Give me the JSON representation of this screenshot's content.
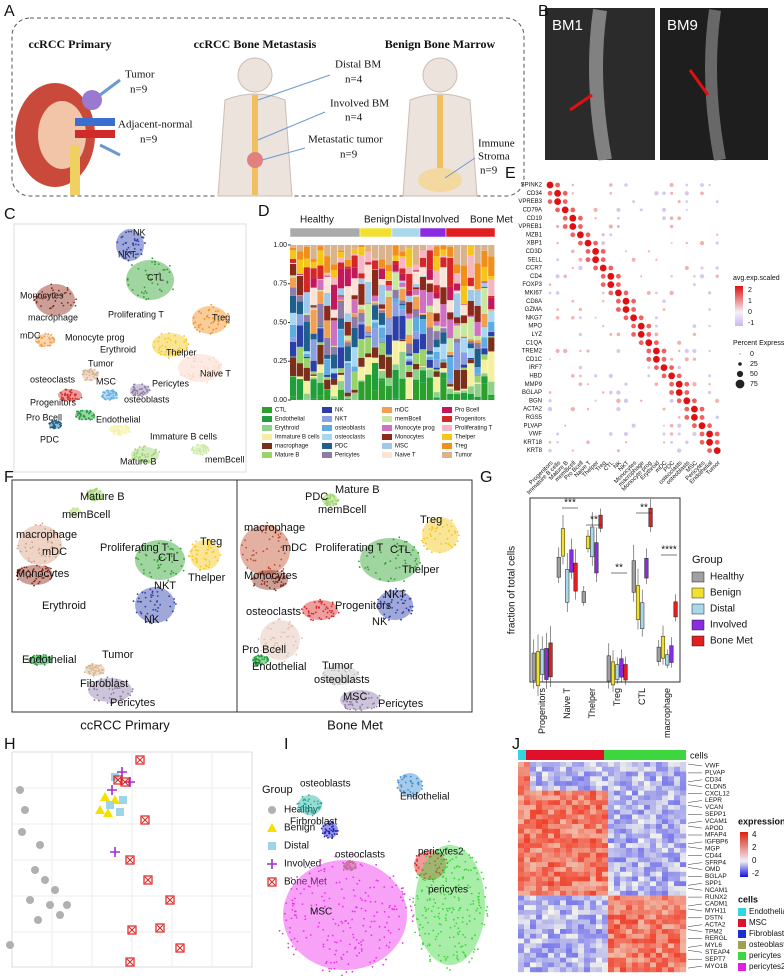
{
  "A": {
    "label": "A",
    "titles": [
      "ccRCC Primary",
      "ccRCC Bone Metastasis",
      "Benign Bone Marrow"
    ],
    "notes": [
      "Tumor",
      "n=9",
      "Adjacent-normal",
      "n=9",
      "Distal BM",
      "n=4",
      "Involved BM",
      "n=4",
      "Metastatic tumor",
      "n=9",
      "Immune",
      "Stroma",
      "n=9"
    ]
  },
  "B": {
    "label": "B",
    "images": [
      "BM1",
      "BM9"
    ]
  },
  "C": {
    "label": "C",
    "clusters": [
      "NK",
      "NKT",
      "CTL",
      "Monocytes",
      "macrophage",
      "mDC",
      "Monocyte prog",
      "Proliferating T",
      "Treg",
      "Erythroid",
      "Thelper",
      "Tumor",
      "osteoclasts",
      "Naive T",
      "MSC",
      "Pericytes",
      "Progenitors",
      "osteoblasts",
      "Pro Bcell",
      "Endothelial",
      "PDC",
      "Immature B cells",
      "Mature B",
      "memBcell"
    ]
  },
  "D": {
    "label": "D",
    "groups": [
      "Healthy",
      "Benign",
      "Distal",
      "Involved",
      "Bone Met"
    ],
    "yticks": [
      {
        "value": 0,
        "label": "0.00"
      },
      {
        "value": 0.25,
        "label": "0.25"
      },
      {
        "value": 0.5,
        "label": "0.50"
      },
      {
        "value": 0.75,
        "label": "0.75"
      },
      {
        "value": 1,
        "label": "1.00"
      }
    ],
    "legend": [
      {
        "name": "CTL",
        "color": "#2ca02c"
      },
      {
        "name": "Endothelial",
        "color": "#1f9e3a"
      },
      {
        "name": "Erythroid",
        "color": "#8fd18b"
      },
      {
        "name": "Immature B cells",
        "color": "#f5f0a0"
      },
      {
        "name": "macrophage",
        "color": "#7a2f1b"
      },
      {
        "name": "Mature B",
        "color": "#9ad36a"
      },
      {
        "name": "NK",
        "color": "#2b3fa8"
      },
      {
        "name": "NKT",
        "color": "#8aa0e0"
      },
      {
        "name": "osteoblasts",
        "color": "#5dade2"
      },
      {
        "name": "osteoclasts",
        "color": "#a8d8ef"
      },
      {
        "name": "PDC",
        "color": "#1f5f8b"
      },
      {
        "name": "Pericytes",
        "color": "#8e7ca8"
      },
      {
        "name": "mDC",
        "color": "#f0a050"
      },
      {
        "name": "memBcell",
        "color": "#c9e7a0"
      },
      {
        "name": "Monocyte prog",
        "color": "#d070c0"
      },
      {
        "name": "Monocytes",
        "color": "#8b2a1a"
      },
      {
        "name": "MSC",
        "color": "#9ec9e8"
      },
      {
        "name": "Naive T",
        "color": "#fbe3d6"
      },
      {
        "name": "Pro Bcell",
        "color": "#c2185b"
      },
      {
        "name": "Progenitors",
        "color": "#d62728"
      },
      {
        "name": "Proliferating T",
        "color": "#f4b6c2"
      },
      {
        "name": "Thelper",
        "color": "#f5c518"
      },
      {
        "name": "Treg",
        "color": "#f28e1c"
      },
      {
        "name": "Tumor",
        "color": "#d9b38c"
      }
    ]
  },
  "E": {
    "label": "E",
    "genes": [
      "SPINK2",
      "CD34",
      "VPREB3",
      "CD79A",
      "CD19",
      "VPREB1",
      "MZB1",
      "XBP1",
      "CD3D",
      "SELL",
      "CCR7",
      "CD4",
      "FOXP3",
      "MKI67",
      "CD8A",
      "GZMA",
      "NKG7",
      "MPO",
      "LYZ",
      "C1QA",
      "TREM2",
      "CD1C",
      "IRF7",
      "HBD",
      "MMP9",
      "BGLAP",
      "BGN",
      "ACTA2",
      "RGS5",
      "PLVAP",
      "VWF",
      "KRT18",
      "KRT8"
    ],
    "cell_types": [
      "Progenitors",
      "Immature B cells",
      "Mature B",
      "memBcell",
      "Pro Bcell",
      "Naive T",
      "Thelper",
      "Treg",
      "CTL",
      "NK",
      "NKT",
      "Monocytes",
      "macrophage",
      "Monocyte prog",
      "Erythroid",
      "mDC",
      "PDC",
      "osteoclasts",
      "osteoblasts",
      "MSC",
      "Pericytes",
      "Endothelial",
      "Tumor"
    ],
    "color_legend": {
      "title": "avg.exp.scaled",
      "ticks": [
        2,
        1,
        0,
        -1
      ]
    },
    "size_legend": {
      "title": "Percent Expressed",
      "ticks": [
        0,
        25,
        50,
        75
      ]
    }
  },
  "F": {
    "label": "F",
    "panels": [
      {
        "caption": "ccRCC Primary",
        "clusters": [
          "Mature B",
          "memBcell",
          "macrophage",
          "mDC",
          "Proliferating T",
          "CTL",
          "Treg",
          "Thelper",
          "Monocytes",
          "NKT",
          "NK",
          "Erythroid",
          "Tumor",
          "Endothelial",
          "Fibroblast",
          "Pericytes"
        ]
      },
      {
        "caption": "Bone Met",
        "clusters": [
          "PDC",
          "Mature B",
          "memBcell",
          "macrophage",
          "mDC",
          "Proliferating T",
          "Treg",
          "CTL",
          "Thelper",
          "Monocytes",
          "NKT",
          "NK",
          "Progenitors",
          "osteoclasts",
          "Pro Bcell",
          "Endothelial",
          "Tumor",
          "osteoblasts",
          "MSC",
          "Pericytes"
        ]
      }
    ]
  },
  "G": {
    "label": "G",
    "ylabel": "fraction of total cells",
    "cell_types": [
      "Progenitors",
      "Naive T",
      "Thelper",
      "Treg",
      "CTL",
      "macrophage"
    ],
    "significance": [
      "***",
      "**",
      "**",
      "**",
      "****"
    ],
    "legend": {
      "title": "Group",
      "items": [
        {
          "name": "Healthy",
          "color": "#a0a0a0"
        },
        {
          "name": "Benign",
          "color": "#f0e030"
        },
        {
          "name": "Distal",
          "color": "#a8d8ea"
        },
        {
          "name": "Involved",
          "color": "#8a2be2"
        },
        {
          "name": "Bone Met",
          "color": "#e02020"
        }
      ]
    }
  },
  "H": {
    "label": "H",
    "legend": {
      "title": "Group",
      "items": [
        {
          "name": "Healthy",
          "color": "#b0b0b0"
        },
        {
          "name": "Benign",
          "color": "#f5e000"
        },
        {
          "name": "Distal",
          "color": "#9fd3e6"
        },
        {
          "name": "Involved",
          "color": "#9b30d9"
        },
        {
          "name": "Bone Met",
          "color": "#e02020"
        }
      ]
    }
  },
  "I": {
    "label": "I",
    "clusters": [
      "osteoblasts",
      "Endothelial",
      "Firbroblast",
      "osteoclasts",
      "pericytes2",
      "MSC",
      "pericytes"
    ]
  },
  "J": {
    "label": "J",
    "bar_label": "cells",
    "genes": [
      "VWF",
      "PLVAP",
      "CD34",
      "CLDN5",
      "CXCL12",
      "LEPR",
      "VCAN",
      "SEPP1",
      "VCAM1",
      "APOD",
      "MFAP4",
      "IGFBP6",
      "MGP",
      "CD44",
      "SFRP4",
      "OMD",
      "BGLAP",
      "SPP1",
      "NCAM1",
      "RUNX2",
      "CADM1",
      "MYH11",
      "DSTN",
      "ACTA2",
      "TPM2",
      "RERGL",
      "MYL6",
      "STEAP4",
      "SEPT7",
      "MYO1B"
    ],
    "color_legend": {
      "title": "expression",
      "ticks": [
        4,
        2,
        0,
        -2
      ]
    },
    "cells_legend": {
      "title": "cells",
      "items": [
        {
          "name": "Endothelial",
          "color": "#33d6e0"
        },
        {
          "name": "MSC",
          "color": "#e0102a"
        },
        {
          "name": "Fibroblast",
          "color": "#1a2fd0"
        },
        {
          "name": "osteoblasts",
          "color": "#a0a050"
        },
        {
          "name": "pericytes",
          "color": "#3ed63e"
        },
        {
          "name": "pericytes2",
          "color": "#e020e0"
        }
      ]
    }
  }
}
